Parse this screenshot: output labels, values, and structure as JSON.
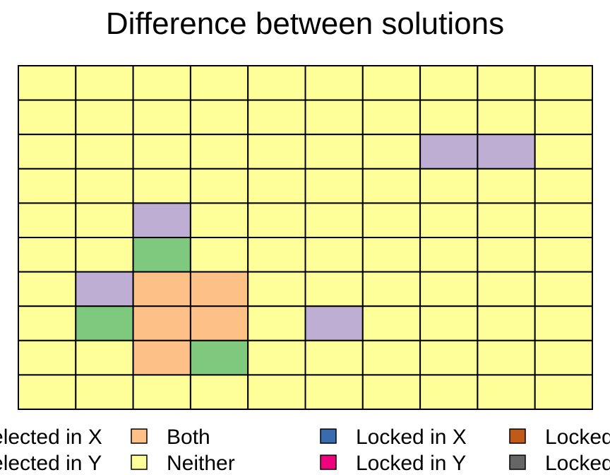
{
  "chart_data": {
    "type": "heatmap",
    "title": "Difference between solutions",
    "rows": 10,
    "cols": 10,
    "grid": true,
    "legend_position": "bottom",
    "colors": {
      "selected_x": "#7fc97f",
      "selected_y": "#beaed4",
      "both": "#fdc086",
      "neither": "#ffff99",
      "locked_x": "#386cb0",
      "locked_y": "#f0027f",
      "locked_both": "#bf5b17",
      "locked_neither": "#666666"
    },
    "cells": [
      [
        "neither",
        "neither",
        "neither",
        "neither",
        "neither",
        "neither",
        "neither",
        "neither",
        "neither",
        "neither"
      ],
      [
        "neither",
        "neither",
        "neither",
        "neither",
        "neither",
        "neither",
        "neither",
        "neither",
        "neither",
        "neither"
      ],
      [
        "neither",
        "neither",
        "neither",
        "neither",
        "neither",
        "neither",
        "neither",
        "selected_y",
        "selected_y",
        "neither"
      ],
      [
        "neither",
        "neither",
        "neither",
        "neither",
        "neither",
        "neither",
        "neither",
        "neither",
        "neither",
        "neither"
      ],
      [
        "neither",
        "neither",
        "selected_y",
        "neither",
        "neither",
        "neither",
        "neither",
        "neither",
        "neither",
        "neither"
      ],
      [
        "neither",
        "neither",
        "selected_x",
        "neither",
        "neither",
        "neither",
        "neither",
        "neither",
        "neither",
        "neither"
      ],
      [
        "neither",
        "selected_y",
        "both",
        "both",
        "neither",
        "neither",
        "neither",
        "neither",
        "neither",
        "neither"
      ],
      [
        "neither",
        "selected_x",
        "both",
        "both",
        "neither",
        "selected_y",
        "neither",
        "neither",
        "neither",
        "neither"
      ],
      [
        "neither",
        "neither",
        "both",
        "selected_x",
        "neither",
        "neither",
        "neither",
        "neither",
        "neither",
        "neither"
      ],
      [
        "neither",
        "neither",
        "neither",
        "neither",
        "neither",
        "neither",
        "neither",
        "neither",
        "neither",
        "neither"
      ]
    ],
    "legend": [
      {
        "key": "selected_x",
        "label": "Selected in X"
      },
      {
        "key": "selected_y",
        "label": "Selected in Y"
      },
      {
        "key": "both",
        "label": "Both"
      },
      {
        "key": "neither",
        "label": "Neither"
      },
      {
        "key": "locked_x",
        "label": "Locked in X"
      },
      {
        "key": "locked_y",
        "label": "Locked in Y"
      },
      {
        "key": "locked_both",
        "label": "Locked in Both"
      },
      {
        "key": "locked_neither",
        "label": "Locked in Neither"
      }
    ]
  }
}
